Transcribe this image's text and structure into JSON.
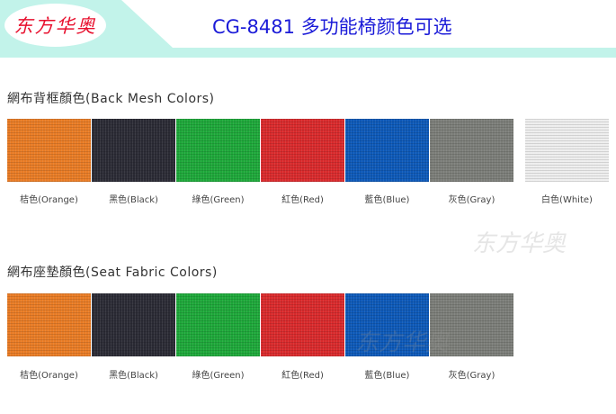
{
  "header": {
    "logo": "东方华奥",
    "title": "CG-8481 多功能椅颜色可选"
  },
  "back_mesh": {
    "heading": "網布背框顏色(Back Mesh Colors)",
    "swatches": [
      {
        "label": "桔色(Orange)",
        "color": "#e97c25"
      },
      {
        "label": "黑色(Black)",
        "color": "#2b2b35"
      },
      {
        "label": "綠色(Green)",
        "color": "#1ea83a"
      },
      {
        "label": "紅色(Red)",
        "color": "#d92a2c"
      },
      {
        "label": "藍色(Blue)",
        "color": "#0d59b8"
      },
      {
        "label": "灰色(Gray)",
        "color": "#7c7e79"
      },
      {
        "label": "白色(White)",
        "color": "#eeeeee"
      }
    ]
  },
  "seat_fabric": {
    "heading": "網布座墊顏色(Seat Fabric Colors)",
    "swatches": [
      {
        "label": "桔色(Orange)",
        "color": "#e97c25"
      },
      {
        "label": "黑色(Black)",
        "color": "#2b2b35"
      },
      {
        "label": "綠色(Green)",
        "color": "#1ea83a"
      },
      {
        "label": "紅色(Red)",
        "color": "#d92a2c"
      },
      {
        "label": "藍色(Blue)",
        "color": "#0d59b8"
      },
      {
        "label": "灰色(Gray)",
        "color": "#7c7e79"
      }
    ]
  },
  "watermark": "东方华奥"
}
